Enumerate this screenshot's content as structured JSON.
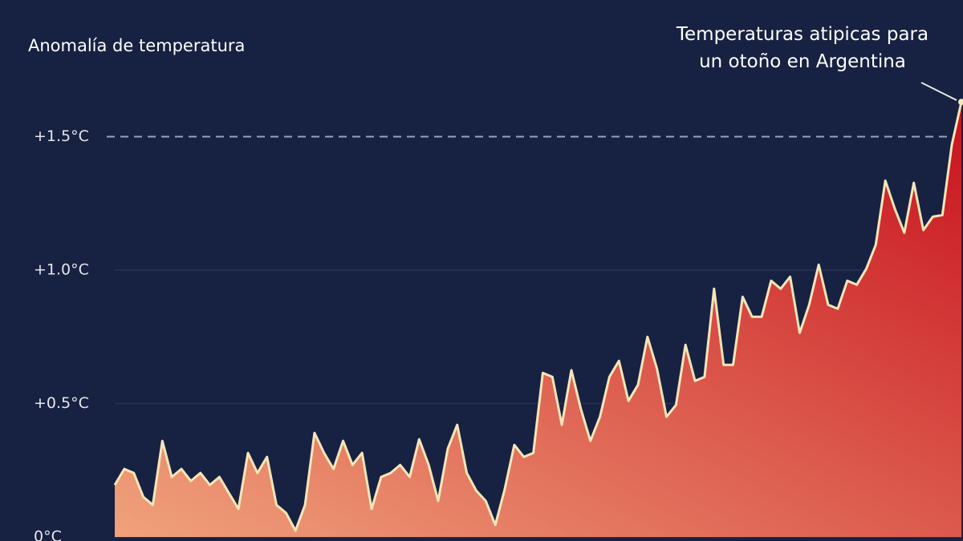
{
  "chart_data": {
    "type": "area",
    "title": "Anomalía de temperatura",
    "annotation": [
      "Temperaturas atipicas para",
      "un otoño en Argentina"
    ],
    "values": [
      0.195,
      0.255,
      0.24,
      0.15,
      0.12,
      0.36,
      0.225,
      0.255,
      0.21,
      0.24,
      0.195,
      0.225,
      0.165,
      0.105,
      0.315,
      0.24,
      0.3,
      0.12,
      0.09,
      0.024,
      0.12,
      0.39,
      0.315,
      0.255,
      0.36,
      0.27,
      0.315,
      0.105,
      0.225,
      0.24,
      0.27,
      0.225,
      0.366,
      0.27,
      0.135,
      0.33,
      0.42,
      0.24,
      0.174,
      0.135,
      0.045,
      0.18,
      0.345,
      0.3,
      0.315,
      0.615,
      0.6,
      0.42,
      0.625,
      0.48,
      0.36,
      0.45,
      0.6,
      0.66,
      0.51,
      0.57,
      0.75,
      0.63,
      0.45,
      0.495,
      0.72,
      0.585,
      0.6,
      0.93,
      0.645,
      0.645,
      0.9,
      0.825,
      0.825,
      0.96,
      0.93,
      0.975,
      0.765,
      0.87,
      1.02,
      0.87,
      0.855,
      0.96,
      0.945,
      1.005,
      1.095,
      1.335,
      1.23,
      1.14,
      1.327,
      1.15,
      1.2,
      1.206,
      1.47,
      1.63
    ],
    "line_color": "#f3e6b8",
    "fill_top": "#c8121e",
    "fill_bottom": "#f0a27c",
    "ylim": [
      0,
      2
    ],
    "yticks": [
      {
        "value": 0,
        "label": "0°C"
      },
      {
        "value": 0.5,
        "label": "+0.5°C"
      },
      {
        "value": 1.0,
        "label": "+1.0°C"
      },
      {
        "value": 1.5,
        "label": "+1.5°C"
      }
    ],
    "reference_line": 1.5,
    "grid": true
  }
}
